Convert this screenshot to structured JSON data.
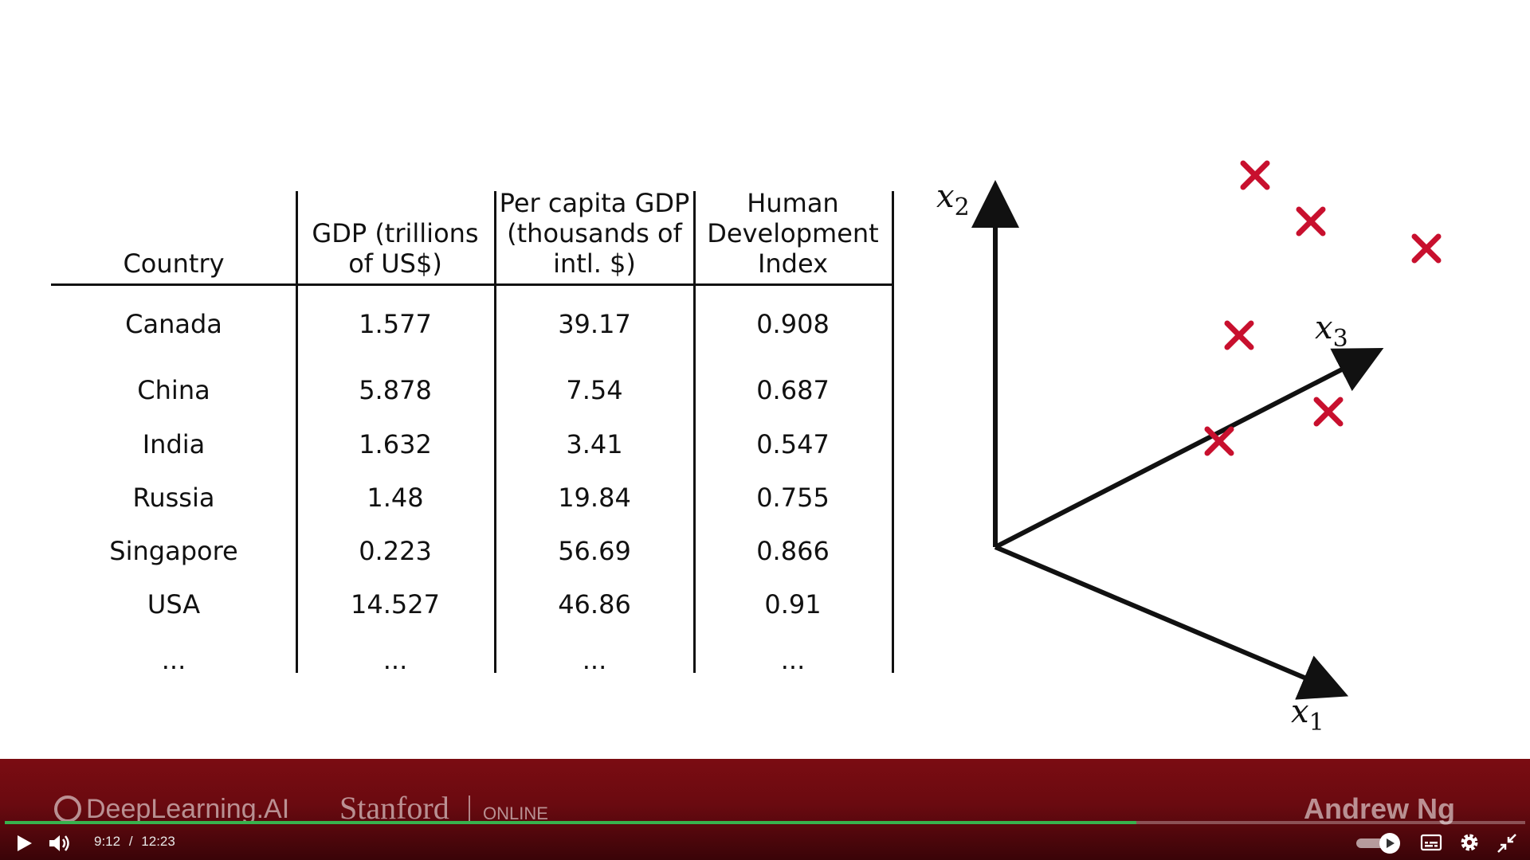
{
  "table": {
    "headers": [
      [
        "Country"
      ],
      [
        "GDP (trillions",
        "of US$)"
      ],
      [
        "Per capita GDP",
        "(thousands of",
        "intl. $)"
      ],
      [
        "Human",
        "Development",
        "Index"
      ]
    ],
    "rows": [
      [
        "Canada",
        "1.577",
        "39.17",
        "0.908"
      ],
      [
        "China",
        "5.878",
        "7.54",
        "0.687"
      ],
      [
        "India",
        "1.632",
        "3.41",
        "0.547"
      ],
      [
        "Russia",
        "1.48",
        "19.84",
        "0.755"
      ],
      [
        "Singapore",
        "0.223",
        "56.69",
        "0.866"
      ],
      [
        "USA",
        "14.527",
        "46.86",
        "0.91"
      ],
      [
        "...",
        "...",
        "...",
        "..."
      ]
    ]
  },
  "plot": {
    "axis_x1": "x",
    "axis_x1_sub": "1",
    "axis_x2": "x",
    "axis_x2_sub": "2",
    "axis_x3": "x",
    "axis_x3_sub": "3",
    "marker_color": "#c8102e"
  },
  "branding": {
    "deeplearning": "DeepLearning.AI",
    "stanford": "Stanford",
    "online": "ONLINE",
    "instructor": "Andrew Ng"
  },
  "player": {
    "current_time": "9:12",
    "separator": "/",
    "duration": "12:23",
    "progress_fraction": 0.744,
    "play_icon": "play-icon",
    "volume_icon": "volume-icon",
    "autoplay_icon": "autoplay-toggle-icon",
    "captions_icon": "captions-icon",
    "settings_icon": "gear-icon",
    "exit_fullscreen_icon": "exit-fullscreen-icon"
  }
}
